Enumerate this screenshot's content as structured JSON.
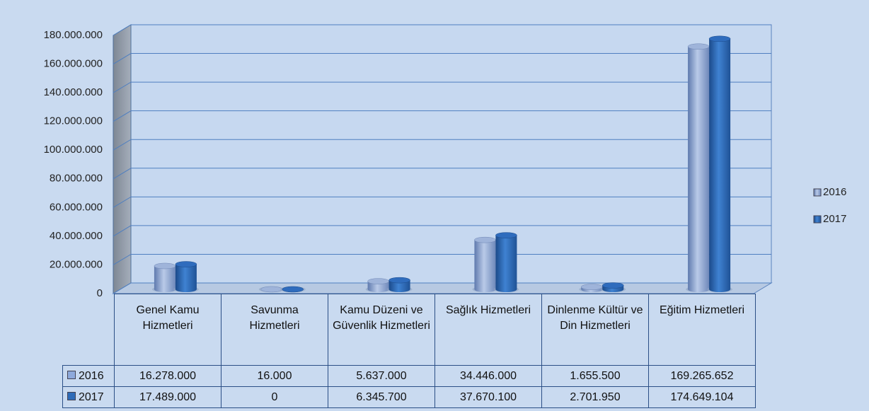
{
  "chart_data": {
    "type": "bar3d",
    "categories": [
      "Genel Kamu Hizmetleri",
      "Savunma Hizmetleri",
      "Kamu Düzeni ve Güvenlik Hizmetleri",
      "Sağlık Hizmetleri",
      "Dinlenme Kültür ve Din Hizmetleri",
      "Eğitim Hizmetleri"
    ],
    "series": [
      {
        "name": "2016",
        "color": "#8ea9db",
        "values": [
          16278000,
          16000,
          5637000,
          34446000,
          1655500,
          169265652
        ],
        "value_labels": [
          "16.278.000",
          "16.000",
          "5.637.000",
          "34.446.000",
          "1.655.500",
          "169.265.652"
        ]
      },
      {
        "name": "2017",
        "color": "#2e6bb8",
        "values": [
          17489000,
          0,
          6345700,
          37670100,
          2701950,
          174649104
        ],
        "value_labels": [
          "17.489.000",
          "0",
          "6.345.700",
          "37.670.100",
          "2.701.950",
          "174.649.104"
        ]
      }
    ],
    "ylim": [
      0,
      180000000
    ],
    "yticks": [
      0,
      {
        "value": 20000000,
        "label": "20.000.000"
      },
      {
        "value": 40000000,
        "label": "40.000.000"
      },
      {
        "value": 60000000,
        "label": "60.000.000"
      },
      {
        "value": 80000000,
        "label": "80.000.000"
      },
      {
        "value": 100000000,
        "label": "100.000.000"
      },
      {
        "value": 120000000,
        "label": "120.000.000"
      },
      {
        "value": 140000000,
        "label": "140.000.000"
      },
      {
        "value": 160000000,
        "label": "160.000.000"
      },
      {
        "value": 180000000,
        "label": "180.000.000"
      }
    ],
    "grid": true,
    "legend": "right"
  }
}
